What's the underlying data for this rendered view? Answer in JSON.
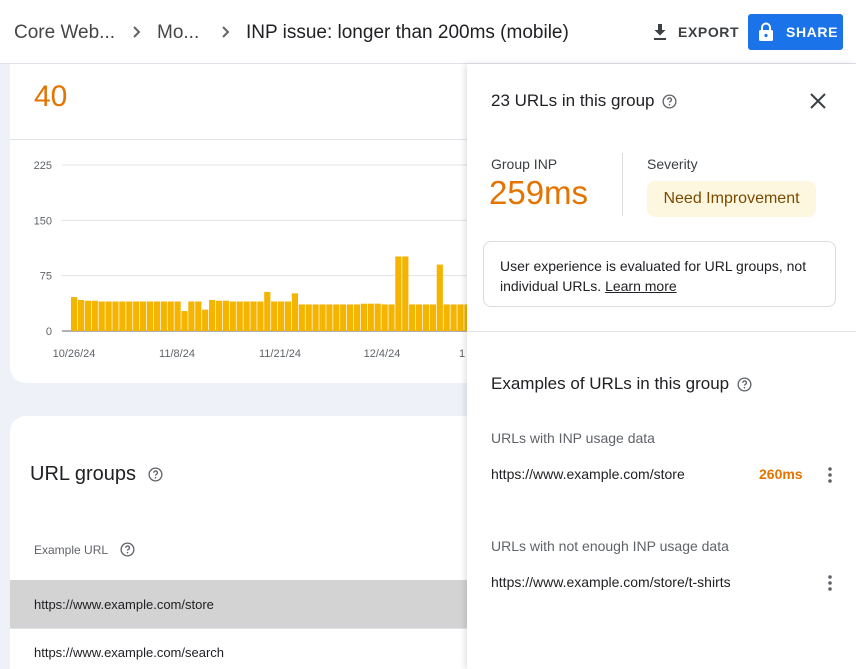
{
  "header": {
    "breadcrumb": [
      "Core Web...",
      "Mo...",
      "INP issue: longer than 200ms (mobile)"
    ],
    "export_label": "EXPORT",
    "share_label": "SHARE"
  },
  "summary": {
    "count": "40"
  },
  "chart_data": {
    "type": "bar",
    "y_ticks": [
      "225",
      "150",
      "75",
      "0"
    ],
    "ylim": [
      0,
      225
    ],
    "x_ticks": [
      "10/26/24",
      "11/8/24",
      "11/21/24",
      "12/4/24",
      "1"
    ],
    "color": "#f4b400",
    "values": [
      46,
      42,
      41,
      41,
      40,
      40,
      40,
      40,
      40,
      40,
      40,
      40,
      40,
      40,
      40,
      40,
      27,
      40,
      40,
      29,
      42,
      41,
      41,
      40,
      40,
      40,
      40,
      40,
      53,
      40,
      40,
      40,
      51,
      36,
      36,
      36,
      36,
      36,
      36,
      36,
      36,
      36,
      37,
      37,
      37,
      36,
      36,
      101,
      101,
      36,
      36,
      36,
      36,
      90,
      36,
      36,
      36,
      36,
      37,
      36,
      36
    ]
  },
  "url_groups": {
    "title": "URL groups",
    "column_header": "Example URL",
    "rows": [
      "https://www.example.com/store",
      "https://www.example.com/search"
    ]
  },
  "panel": {
    "title": "23 URLs in this group",
    "group_inp_label": "Group INP",
    "group_inp_value": "259ms",
    "severity_label": "Severity",
    "severity_value": "Need Improvement",
    "info_text": "User experience is evaluated for URL groups, not individual URLs.",
    "learn_more": "Learn more",
    "examples_title": "Examples of URLs in this group",
    "with_data_label": "URLs with INP usage data",
    "with_data": [
      {
        "url": "https://www.example.com/store",
        "value": "260ms"
      }
    ],
    "without_data_label": "URLs with not enough INP usage data",
    "without_data": [
      {
        "url": "https://www.example.com/store/t-shirts"
      }
    ]
  },
  "colors": {
    "accent": "#1a73e8",
    "warning": "#e37400",
    "bar": "#f4b400",
    "severity_bg": "#fef7e0"
  }
}
